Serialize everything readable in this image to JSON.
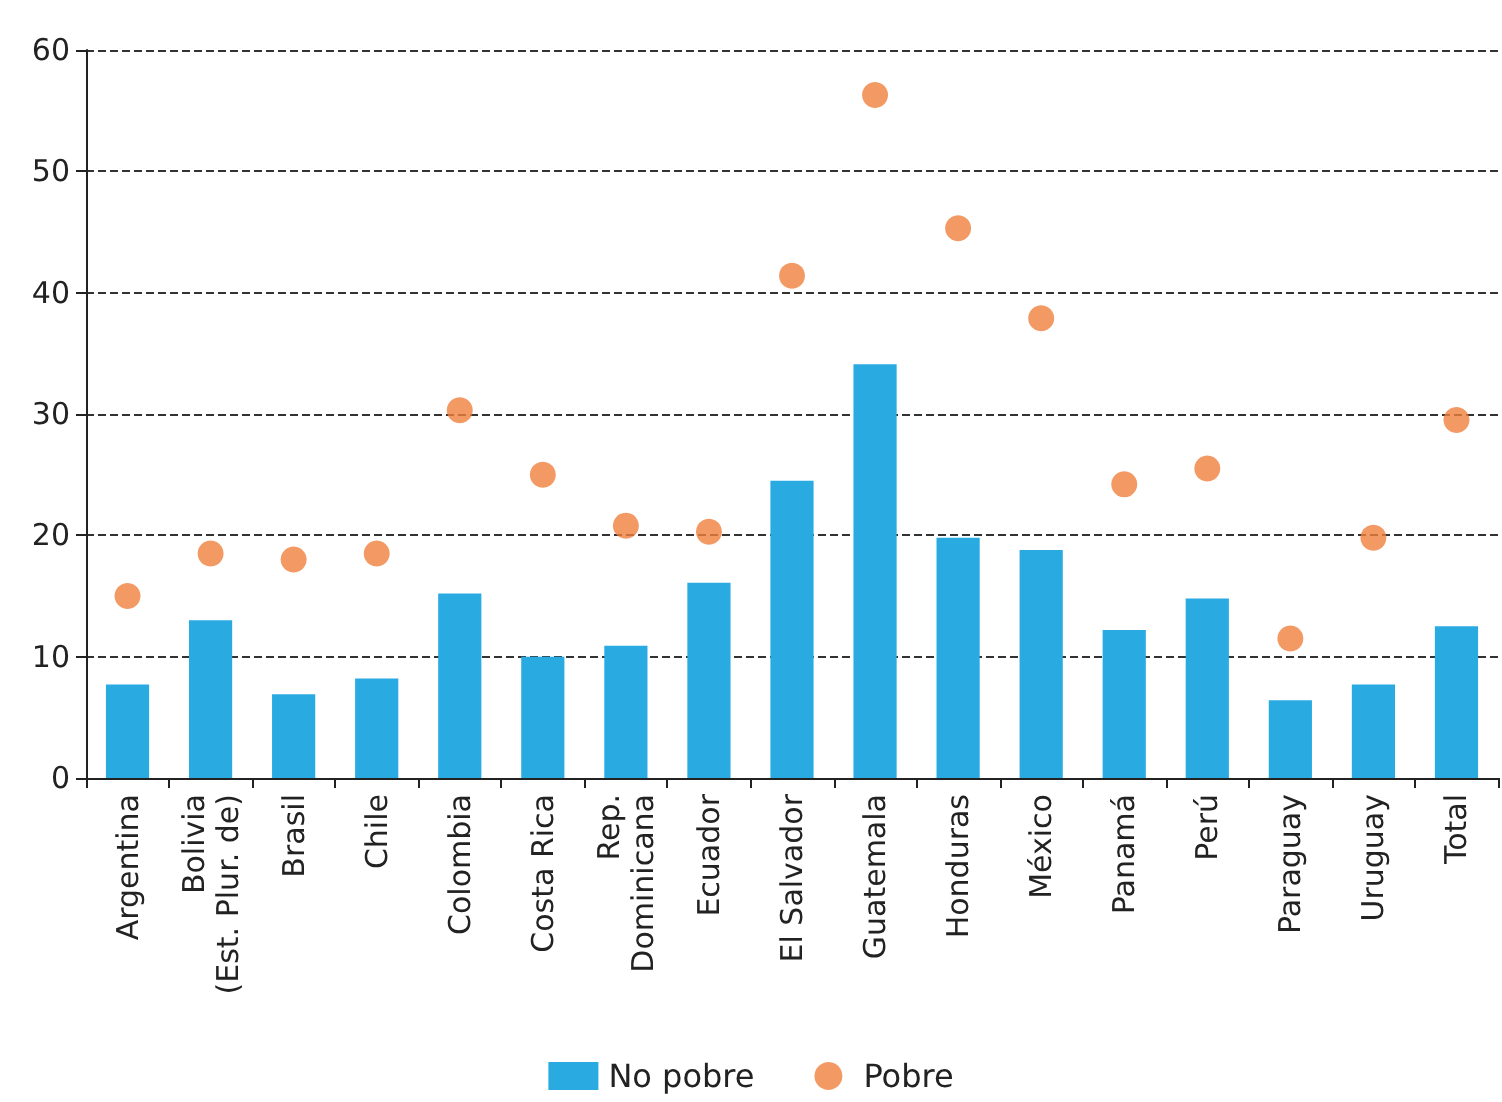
{
  "chart_data": {
    "type": "bar",
    "categories": [
      "Argentina",
      "Bolivia\n(Est. Plur. de)",
      "Brasil",
      "Chile",
      "Colombia",
      "Costa Rica",
      "Rep.\nDominicana",
      "Ecuador",
      "El Salvador",
      "Guatemala",
      "Honduras",
      "México",
      "Panamá",
      "Perú",
      "Paraguay",
      "Uruguay",
      "Total"
    ],
    "series": [
      {
        "name": "No pobre",
        "type": "bar",
        "color": "#29abe2",
        "values": [
          7.7,
          13.0,
          6.9,
          8.2,
          15.2,
          10.0,
          10.9,
          16.1,
          24.5,
          34.1,
          19.8,
          18.8,
          12.2,
          14.8,
          6.4,
          7.7,
          12.5
        ]
      },
      {
        "name": "Pobre",
        "type": "scatter",
        "color": "#f07f3c",
        "values": [
          15.0,
          18.5,
          18.0,
          18.5,
          30.3,
          25.0,
          20.8,
          20.3,
          41.4,
          56.3,
          45.3,
          37.9,
          24.2,
          25.5,
          11.5,
          19.8,
          29.5
        ]
      }
    ],
    "ylim": [
      0,
      60
    ],
    "yticks": [
      0,
      10,
      20,
      30,
      40,
      50,
      60
    ],
    "grid": "y",
    "line_style": "dashed",
    "marker": "circle",
    "legend": "bottom"
  }
}
